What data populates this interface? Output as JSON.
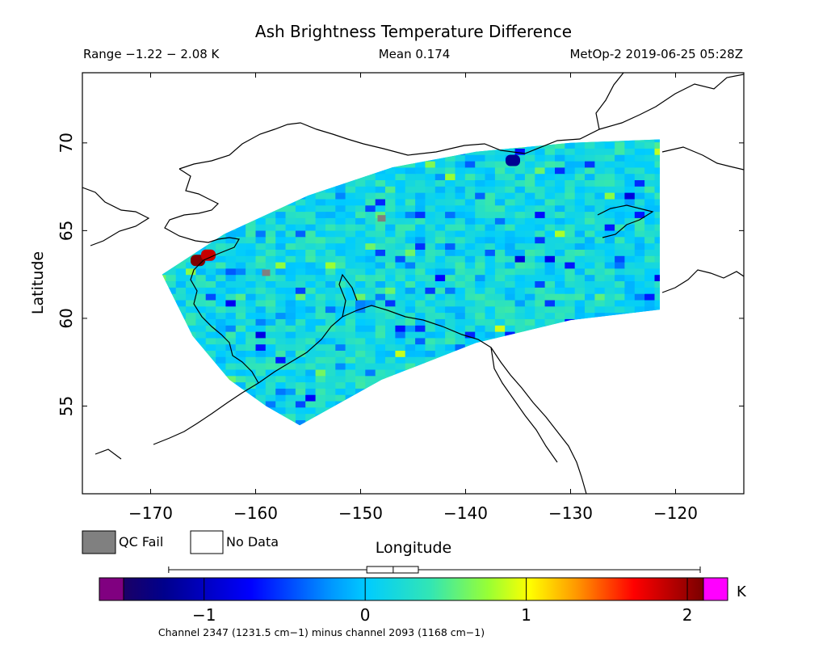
{
  "chart_data": {
    "type": "heatmap",
    "title": "Ash Brightness Temperature Difference",
    "range_label": "Range −1.22 − 2.08 K",
    "mean_label": "Mean 0.174",
    "satellite_label": "MetOp-2 2019-06-25 05:28Z",
    "xlabel": "Longitude",
    "ylabel": "Latitude",
    "xlim": [
      -176.5,
      -113.5
    ],
    "ylim": [
      50,
      74
    ],
    "x_ticks": [
      -170,
      -160,
      -150,
      -140,
      -130,
      -120
    ],
    "x_tick_labels": [
      "−170",
      "−160",
      "−150",
      "−140",
      "−130",
      "−120"
    ],
    "y_ticks": [
      55,
      60,
      65,
      70
    ],
    "y_tick_labels": [
      "55",
      "60",
      "65",
      "70"
    ],
    "legend": {
      "qc_fail": "QC Fail",
      "no_data": "No Data",
      "qc_fail_color": "#808080",
      "no_data_color": "#ffffff"
    },
    "colorbar": {
      "min": -1.5,
      "max": 2.1,
      "unit": "K",
      "ticks": [
        -1,
        0,
        1,
        2
      ],
      "tick_labels": [
        "−1",
        "0",
        "1",
        "2"
      ],
      "under_color": "#800080",
      "over_color": "#ff00ff",
      "caption": "Channel 2347 (1231.5 cm−1) minus channel 2093 (1168 cm−1)"
    },
    "boxplot": {
      "whisker_low": -1.22,
      "q1": 0.01,
      "median": 0.174,
      "q3": 0.33,
      "whisker_high": 2.08
    },
    "swath": {
      "left_edge": [
        [
          -168.9,
          62.5
        ],
        [
          -166.0,
          59.0
        ],
        [
          -162.5,
          56.5
        ],
        [
          -159.0,
          55.0
        ],
        [
          -155.8,
          53.9
        ]
      ],
      "top_edge": [
        [
          -168.9,
          62.5
        ],
        [
          -163.0,
          64.8
        ],
        [
          -155.0,
          67.0
        ],
        [
          -147.0,
          68.6
        ],
        [
          -139.0,
          69.5
        ],
        [
          -130.0,
          70.0
        ],
        [
          -121.5,
          70.2
        ]
      ],
      "right_edge": [
        [
          -121.5,
          70.2
        ],
        [
          -121.5,
          60.5
        ]
      ],
      "bottom_edge": [
        [
          -155.8,
          53.9
        ],
        [
          -148.0,
          56.5
        ],
        [
          -139.0,
          58.6
        ],
        [
          -130.0,
          59.9
        ],
        [
          -121.5,
          60.5
        ]
      ],
      "mean_value": 0.174,
      "hotspots": [
        {
          "lon": -165.5,
          "lat": 63.3,
          "value": 2.08
        },
        {
          "lon": -164.5,
          "lat": 63.6,
          "value": 1.85
        },
        {
          "lon": -135.5,
          "lat": 69.0,
          "value": -1.22
        }
      ],
      "qc_fail_points": [
        {
          "lon": -148.0,
          "lat": 65.7
        },
        {
          "lon": -159.0,
          "lat": 62.6
        }
      ]
    }
  }
}
